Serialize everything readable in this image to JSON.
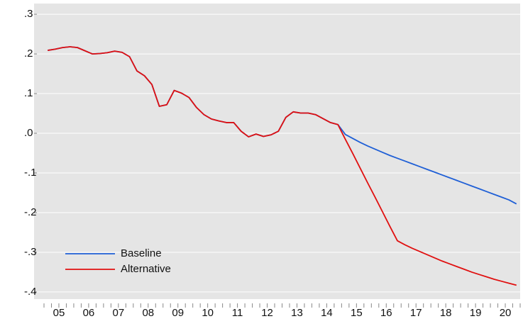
{
  "chart_data": {
    "type": "line",
    "categories": [
      "05",
      null,
      null,
      null,
      "06",
      null,
      null,
      null,
      "07",
      null,
      null,
      null,
      "08",
      null,
      null,
      null,
      "09",
      null,
      null,
      null,
      "10",
      null,
      null,
      null,
      "11",
      null,
      null,
      null,
      "12",
      null,
      null,
      null,
      "13",
      null,
      null,
      null,
      "14",
      null,
      null,
      null,
      "15",
      null,
      null,
      null,
      "16",
      null,
      null,
      null,
      "17",
      null,
      null,
      null,
      "18",
      null,
      null,
      null,
      "19",
      null,
      null,
      null,
      "20",
      null,
      null,
      null
    ],
    "series": [
      {
        "name": "Baseline",
        "color": "#1f5fd6",
        "values": [
          0.209,
          0.212,
          0.216,
          0.218,
          0.216,
          0.208,
          0.2,
          0.201,
          0.203,
          0.207,
          0.204,
          0.193,
          0.157,
          0.145,
          0.123,
          0.068,
          0.072,
          0.108,
          0.101,
          0.09,
          0.065,
          0.047,
          0.036,
          0.031,
          0.027,
          0.027,
          0.005,
          -0.009,
          -0.002,
          -0.008,
          -0.004,
          0.005,
          0.04,
          0.054,
          0.051,
          0.051,
          0.047,
          0.037,
          0.027,
          0.022,
          -0.003,
          -0.013,
          -0.023,
          -0.032,
          -0.04,
          -0.048,
          -0.056,
          -0.063,
          -0.07,
          -0.077,
          -0.084,
          -0.091,
          -0.098,
          -0.105,
          -0.112,
          -0.119,
          -0.126,
          -0.133,
          -0.14,
          -0.147,
          -0.154,
          -0.161,
          -0.168,
          -0.178
        ]
      },
      {
        "name": "Alternative",
        "color": "#e01010",
        "values": [
          0.209,
          0.212,
          0.216,
          0.218,
          0.216,
          0.208,
          0.2,
          0.201,
          0.203,
          0.207,
          0.204,
          0.193,
          0.157,
          0.145,
          0.123,
          0.068,
          0.072,
          0.108,
          0.101,
          0.09,
          0.065,
          0.047,
          0.036,
          0.031,
          0.027,
          0.027,
          0.005,
          -0.009,
          -0.002,
          -0.008,
          -0.004,
          0.005,
          0.04,
          0.054,
          0.051,
          0.051,
          0.047,
          0.037,
          0.027,
          0.022,
          -0.015,
          -0.051,
          -0.088,
          -0.125,
          -0.161,
          -0.198,
          -0.235,
          -0.271,
          -0.281,
          -0.29,
          -0.298,
          -0.306,
          -0.314,
          -0.322,
          -0.329,
          -0.336,
          -0.343,
          -0.35,
          -0.356,
          -0.362,
          -0.368,
          -0.373,
          -0.378,
          -0.383
        ]
      }
    ],
    "ylim": [
      -0.418,
      0.327
    ],
    "yticks": [
      {
        "value": 0.3,
        "label": ".3"
      },
      {
        "value": 0.2,
        "label": ".2"
      },
      {
        "value": 0.1,
        "label": ".1"
      },
      {
        "value": 0,
        "label": ".0"
      },
      {
        "value": -0.1,
        "label": "-.1"
      },
      {
        "value": -0.2,
        "label": "-.2"
      },
      {
        "value": -0.3,
        "label": "-.3"
      },
      {
        "value": -0.4,
        "label": "-.4"
      }
    ],
    "grid": true,
    "legend": "lower left"
  }
}
